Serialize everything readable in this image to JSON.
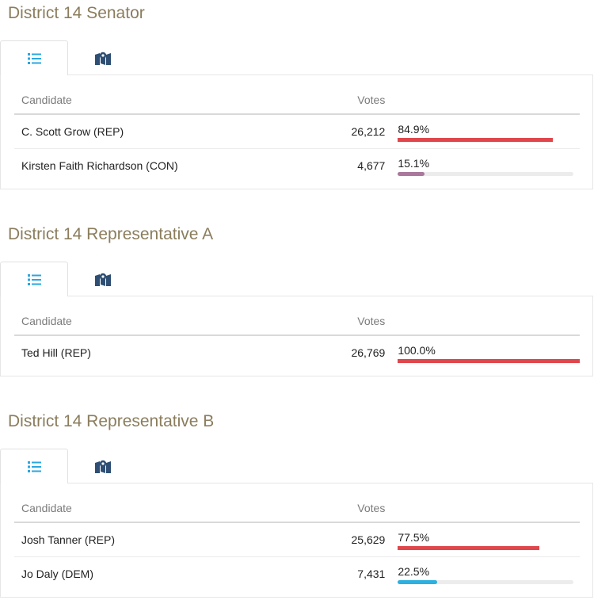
{
  "colors": {
    "REP": "#e0474c",
    "CON": "#a9789c",
    "DEM": "#2cb0e0",
    "title": "#8b7d5c",
    "tab_icon_active": "#2aa7e0",
    "tab_icon": "#2e4f73"
  },
  "icons": {
    "list_tab": "list-icon",
    "map_tab": "map-icon"
  },
  "races": [
    {
      "title": "District 14 Senator",
      "header": {
        "candidate": "Candidate",
        "votes": "Votes"
      },
      "rows": [
        {
          "name": "C. Scott Grow (REP)",
          "votes": "26,212",
          "pct": "84.9%",
          "share": 84.9,
          "party": "REP",
          "winner": true
        },
        {
          "name": "Kirsten Faith Richardson (CON)",
          "votes": "4,677",
          "pct": "15.1%",
          "share": 15.1,
          "party": "CON",
          "winner": false
        }
      ]
    },
    {
      "title": "District 14 Representative A",
      "header": {
        "candidate": "Candidate",
        "votes": "Votes"
      },
      "rows": [
        {
          "name": "Ted Hill (REP)",
          "votes": "26,769",
          "pct": "100.0%",
          "share": 100.0,
          "party": "REP",
          "winner": true
        }
      ]
    },
    {
      "title": "District 14 Representative B",
      "header": {
        "candidate": "Candidate",
        "votes": "Votes"
      },
      "rows": [
        {
          "name": "Josh Tanner (REP)",
          "votes": "25,629",
          "pct": "77.5%",
          "share": 77.5,
          "party": "REP",
          "winner": true
        },
        {
          "name": "Jo Daly (DEM)",
          "votes": "7,431",
          "pct": "22.5%",
          "share": 22.5,
          "party": "DEM",
          "winner": false
        }
      ]
    }
  ]
}
